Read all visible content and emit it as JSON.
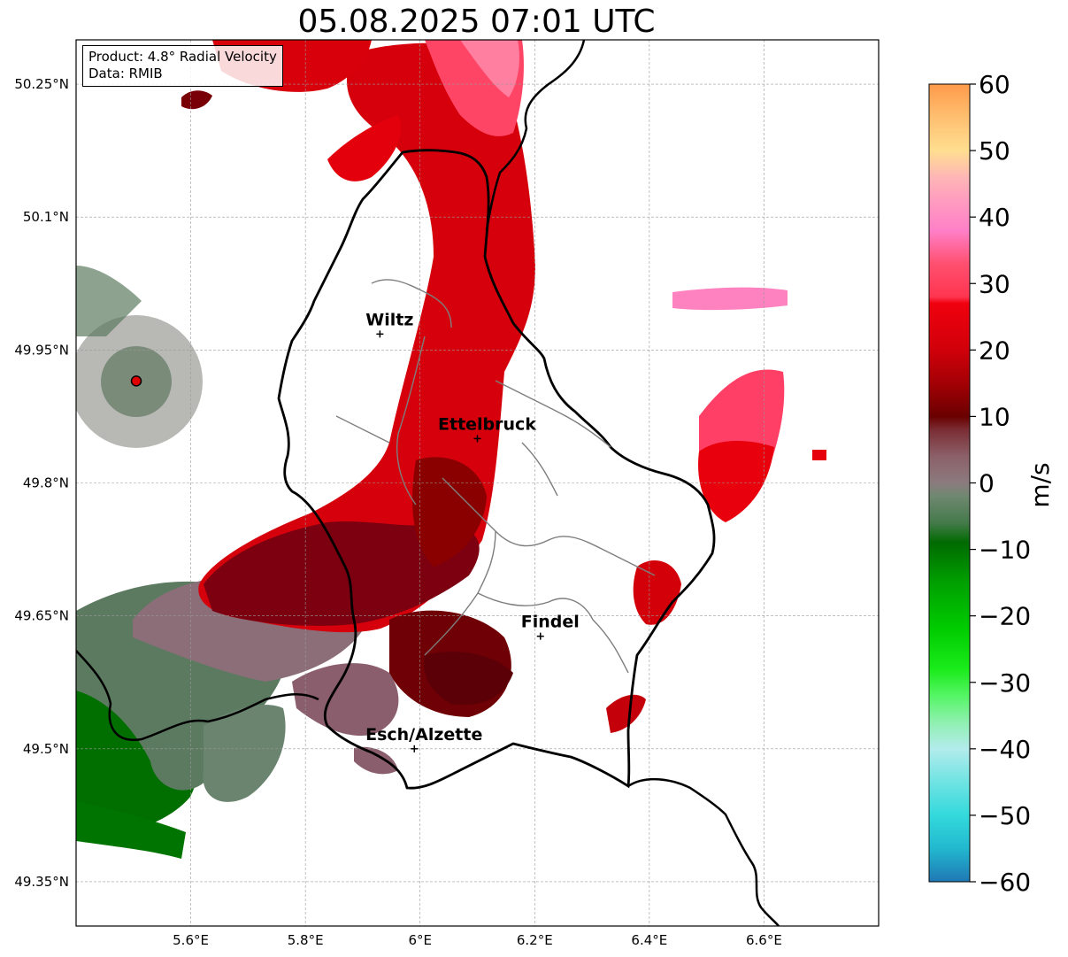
{
  "title": "05.08.2025 07:01 UTC",
  "infobox": {
    "product": "Product: 4.8° Radial Velocity",
    "data": "Data: RMIB"
  },
  "axes": {
    "lat_ticks": [
      "50.25°N",
      "50.1°N",
      "49.95°N",
      "49.8°N",
      "49.65°N",
      "49.5°N",
      "49.35°N"
    ],
    "lon_ticks": [
      "5.6°E",
      "5.8°E",
      "6°E",
      "6.2°E",
      "6.4°E",
      "6.6°E"
    ],
    "lat_range": [
      49.3,
      50.3
    ],
    "lon_range": [
      5.4,
      6.8
    ],
    "grid": true
  },
  "cities": [
    {
      "name": "Wiltz",
      "lon": 5.93,
      "lat": 49.968
    },
    {
      "name": "Ettelbruck",
      "lon": 6.1,
      "lat": 49.85
    },
    {
      "name": "Findel",
      "lon": 6.21,
      "lat": 49.627
    },
    {
      "name": "Esch/Alzette",
      "lon": 5.99,
      "lat": 49.5
    }
  ],
  "radar_site": {
    "lon": 5.505,
    "lat": 49.915
  },
  "colorbar": {
    "label": "m/s",
    "min": -60,
    "max": 60,
    "ticks": [
      "60",
      "50",
      "40",
      "30",
      "20",
      "10",
      "0",
      "−10",
      "−20",
      "−30",
      "−40",
      "−50",
      "−60"
    ],
    "stops": [
      {
        "v": -60,
        "c": "#1f78b4"
      },
      {
        "v": -55,
        "c": "#22b8cf"
      },
      {
        "v": -50,
        "c": "#33d9dc"
      },
      {
        "v": -45,
        "c": "#70e3e3"
      },
      {
        "v": -40,
        "c": "#b3ecec"
      },
      {
        "v": -36,
        "c": "#8ff0b0"
      },
      {
        "v": -32,
        "c": "#55f565"
      },
      {
        "v": -28,
        "c": "#1aeb1a"
      },
      {
        "v": -22,
        "c": "#00cc00"
      },
      {
        "v": -15,
        "c": "#00a000"
      },
      {
        "v": -9,
        "c": "#006a00"
      },
      {
        "v": -6,
        "c": "#447a4a"
      },
      {
        "v": -2,
        "c": "#6f8870"
      },
      {
        "v": 0,
        "c": "#8b7b7e"
      },
      {
        "v": 4,
        "c": "#8c6069"
      },
      {
        "v": 8,
        "c": "#7a2d34"
      },
      {
        "v": 10,
        "c": "#6a0000"
      },
      {
        "v": 15,
        "c": "#a30005"
      },
      {
        "v": 20,
        "c": "#d0000a"
      },
      {
        "v": 27,
        "c": "#f0000e"
      },
      {
        "v": 28,
        "c": "#ff3550"
      },
      {
        "v": 33,
        "c": "#ff5070"
      },
      {
        "v": 38,
        "c": "#ff80c8"
      },
      {
        "v": 42,
        "c": "#ff99c0"
      },
      {
        "v": 46,
        "c": "#ffb6b6"
      },
      {
        "v": 50,
        "c": "#ffde90"
      },
      {
        "v": 55,
        "c": "#ffbf70"
      },
      {
        "v": 60,
        "c": "#ff9a4a"
      }
    ]
  }
}
